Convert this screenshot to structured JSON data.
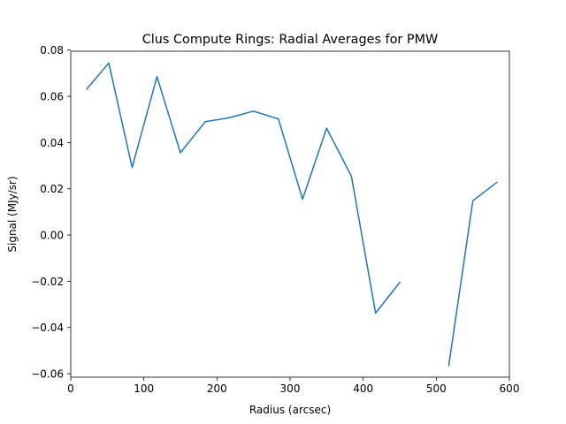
{
  "chart_data": {
    "type": "line",
    "title": "Clus Compute Rings: Radial Averages for PMW",
    "xlabel": "Radius (arcsec)",
    "ylabel": "Signal (MJy/sr)",
    "xlim": [
      0,
      600
    ],
    "ylim": [
      -0.0615,
      0.0795
    ],
    "grid": false,
    "xticks": [
      0,
      100,
      200,
      300,
      400,
      500,
      600
    ],
    "yticks": [
      -0.06,
      -0.04,
      -0.02,
      0.0,
      0.02,
      0.04,
      0.06,
      0.08
    ],
    "xtick_labels": [
      "0",
      "100",
      "200",
      "300",
      "400",
      "500",
      "600"
    ],
    "ytick_labels": [
      "−0.06",
      "−0.04",
      "−0.02",
      "0.00",
      "0.02",
      "0.04",
      "0.06",
      "0.08"
    ],
    "series": [
      {
        "color": "#1f77b4",
        "x": [
          22,
          52,
          84,
          118,
          150,
          184,
          216,
          250,
          284,
          317,
          350,
          384,
          417,
          450,
          484,
          517,
          550,
          583
        ],
        "y": [
          0.0632,
          0.0744,
          0.0292,
          0.0685,
          0.0356,
          0.049,
          0.0507,
          0.0536,
          0.0502,
          0.0155,
          0.0462,
          0.0254,
          -0.0338,
          -0.0205,
          null,
          -0.0565,
          0.0148,
          0.0228
        ]
      }
    ]
  }
}
